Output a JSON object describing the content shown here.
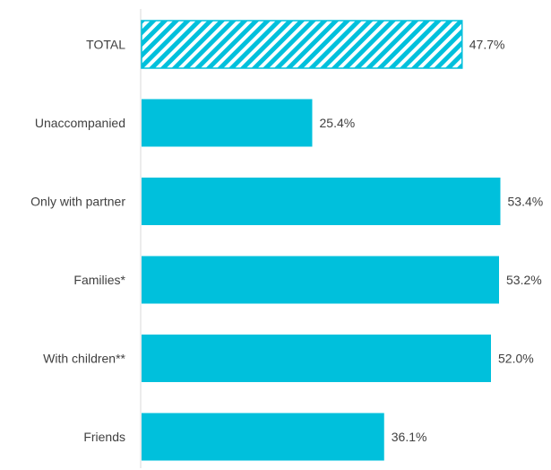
{
  "chart_data": {
    "type": "bar",
    "orientation": "horizontal",
    "title": "",
    "xlabel": "",
    "ylabel": "",
    "categories": [
      "TOTAL",
      "Unaccompanied",
      "Only with partner",
      "Families*",
      "With children**",
      "Friends"
    ],
    "values": [
      47.7,
      25.4,
      53.4,
      53.2,
      52.0,
      36.1
    ],
    "value_labels": [
      "47.7%",
      "25.4%",
      "53.4%",
      "53.2%",
      "52.0%",
      "36.1%"
    ],
    "bar_styles": [
      "hatched",
      "solid",
      "solid",
      "solid",
      "solid",
      "solid"
    ],
    "xlim": [
      0,
      60
    ],
    "grid": false,
    "legend": "none"
  },
  "colors": {
    "bar": "#00c0dc",
    "axis_line": "#d9d9d9",
    "text": "#404040"
  }
}
